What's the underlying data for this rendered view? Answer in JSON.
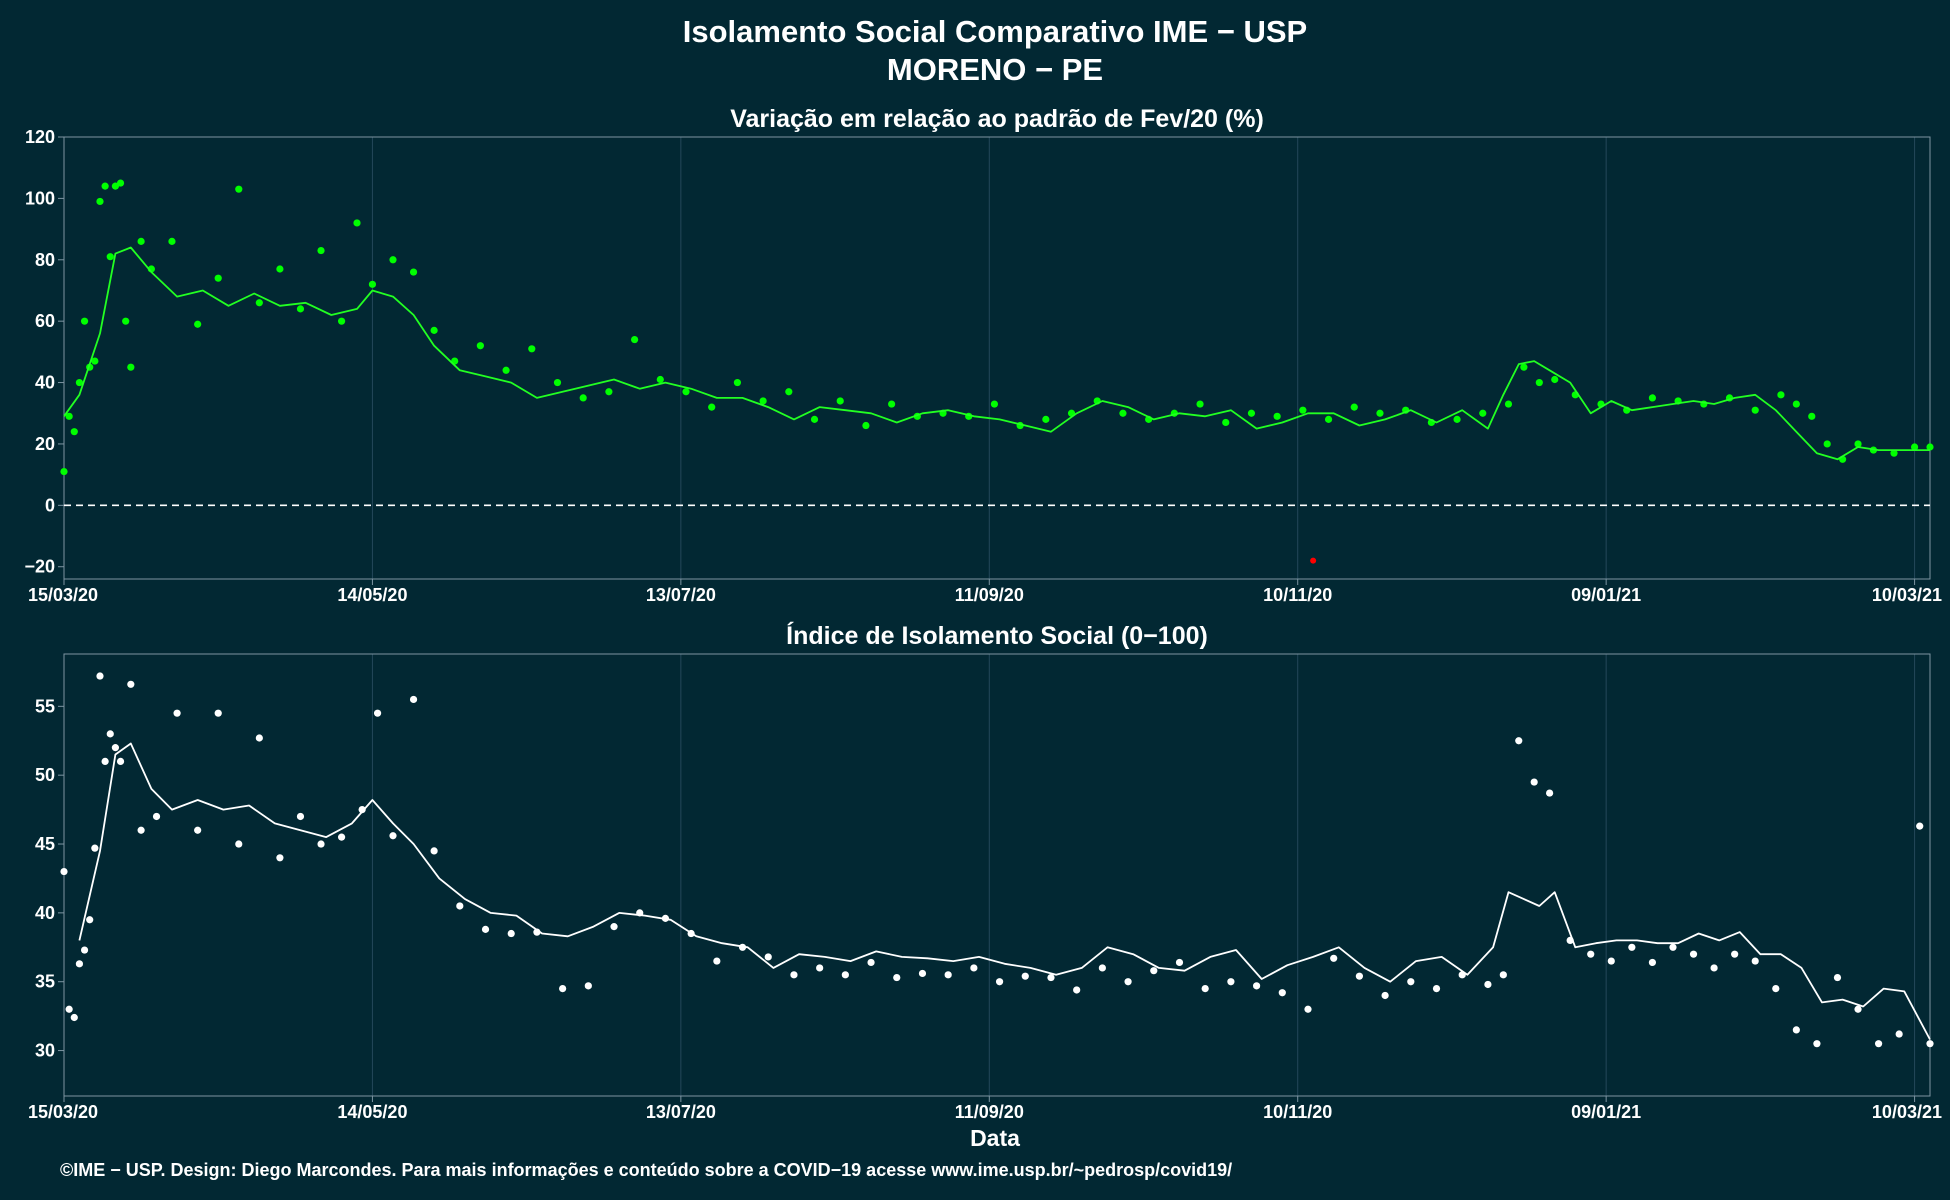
{
  "title_line1": "Isolamento Social Comparativo IME − USP",
  "title_line2": "MORENO − PE",
  "xlabel": "Data",
  "footer": "©IME − USP. Design: Diego Marcondes. Para mais informações e conteúdo sobre a COVID−19 acesse www.ime.usp.br/~pedrosp/covid19/",
  "colors": {
    "background": "#022833",
    "grid": "#24485a",
    "axis": "#7d95a2",
    "variation_points": "#00ff00",
    "variation_line": "#22ff22",
    "negative_point": "#ff0000",
    "index_points": "#ffffff",
    "index_line": "#ffffff"
  },
  "x_ticks": [
    "15/03/20",
    "14/05/20",
    "13/07/20",
    "11/09/20",
    "10/11/20",
    "09/01/21",
    "10/03/21"
  ],
  "chart_data": [
    {
      "type": "scatter",
      "title": "Variação em relação ao padrão de Fev/20 (%)",
      "x_range": [
        "15/03/20",
        "13/03/21"
      ],
      "ylim": [
        -24,
        120
      ],
      "y_ticks": [
        -20,
        0,
        20,
        40,
        60,
        80,
        100,
        120
      ],
      "reference_line": {
        "y": 0,
        "style": "dashed"
      },
      "grid": true,
      "series": [
        {
          "kind": "points",
          "dates": [
            "15/03/20",
            "16/03/20",
            "17/03/20",
            "18/03/20",
            "19/03/20",
            "20/03/20",
            "21/03/20",
            "22/03/20",
            "23/03/20",
            "24/03/20",
            "25/03/20",
            "26/03/20",
            "27/03/20",
            "28/03/20",
            "30/03/20",
            "01/04/20",
            "05/04/20",
            "10/04/20",
            "14/04/20",
            "18/04/20",
            "22/04/20",
            "26/04/20",
            "30/04/20",
            "04/05/20",
            "08/05/20",
            "11/05/20",
            "14/05/20",
            "18/05/20",
            "22/05/20",
            "26/05/20",
            "30/05/20",
            "04/06/20",
            "09/06/20",
            "14/06/20",
            "19/06/20",
            "24/06/20",
            "29/06/20",
            "04/07/20",
            "09/07/20",
            "14/07/20",
            "19/07/20",
            "24/07/20",
            "29/07/20",
            "03/08/20",
            "08/08/20",
            "13/08/20",
            "18/08/20",
            "23/08/20",
            "28/08/20",
            "02/09/20",
            "07/09/20",
            "12/09/20",
            "17/09/20",
            "22/09/20",
            "27/09/20",
            "02/10/20",
            "07/10/20",
            "12/10/20",
            "17/10/20",
            "22/10/20",
            "27/10/20",
            "01/11/20",
            "06/11/20",
            "11/11/20",
            "16/11/20",
            "21/11/20",
            "26/11/20",
            "01/12/20",
            "06/12/20",
            "11/12/20",
            "16/12/20",
            "21/12/20",
            "24/12/20",
            "27/12/20",
            "30/12/20",
            "03/01/21",
            "08/01/21",
            "13/01/21",
            "18/01/21",
            "23/01/21",
            "28/01/21",
            "02/02/21",
            "07/02/21",
            "12/02/21",
            "15/02/21",
            "18/02/21",
            "21/02/21",
            "24/02/21",
            "27/02/21",
            "02/03/21",
            "06/03/21",
            "10/03/21",
            "13/03/21"
          ],
          "values": [
            11,
            29,
            24,
            40,
            60,
            45,
            47,
            99,
            104,
            81,
            104,
            105,
            60,
            45,
            86,
            77,
            86,
            59,
            74,
            103,
            66,
            77,
            64,
            83,
            60,
            92,
            72,
            80,
            76,
            57,
            47,
            52,
            44,
            51,
            40,
            35,
            37,
            54,
            41,
            37,
            32,
            40,
            34,
            37,
            28,
            34,
            26,
            33,
            29,
            30,
            29,
            33,
            26,
            28,
            30,
            34,
            30,
            28,
            30,
            33,
            27,
            30,
            29,
            31,
            28,
            32,
            30,
            31,
            27,
            28,
            30,
            33,
            45,
            40,
            41,
            36,
            33,
            31,
            35,
            34,
            33,
            35,
            31,
            36,
            33,
            29,
            20,
            15,
            20,
            18,
            17,
            19,
            19
          ]
        },
        {
          "kind": "moving_average",
          "dates": [
            "15/03/20",
            "18/03/20",
            "22/03/20",
            "25/03/20",
            "28/03/20",
            "01/04/20",
            "06/04/20",
            "11/04/20",
            "16/04/20",
            "21/04/20",
            "26/04/20",
            "01/05/20",
            "06/05/20",
            "11/05/20",
            "14/05/20",
            "18/05/20",
            "22/05/20",
            "26/05/20",
            "31/05/20",
            "05/06/20",
            "10/06/20",
            "15/06/20",
            "20/06/20",
            "25/06/20",
            "30/06/20",
            "05/07/20",
            "10/07/20",
            "15/07/20",
            "20/07/20",
            "25/07/20",
            "30/07/20",
            "04/08/20",
            "09/08/20",
            "14/08/20",
            "19/08/20",
            "24/08/20",
            "29/08/20",
            "03/09/20",
            "08/09/20",
            "13/09/20",
            "18/09/20",
            "23/09/20",
            "28/09/20",
            "03/10/20",
            "08/10/20",
            "13/10/20",
            "18/10/20",
            "23/10/20",
            "28/10/20",
            "02/11/20",
            "07/11/20",
            "12/11/20",
            "17/11/20",
            "22/11/20",
            "27/11/20",
            "02/12/20",
            "07/12/20",
            "12/12/20",
            "17/12/20",
            "20/12/20",
            "23/12/20",
            "26/12/20",
            "29/12/20",
            "02/01/21",
            "06/01/21",
            "10/01/21",
            "14/01/21",
            "18/01/21",
            "22/01/21",
            "26/01/21",
            "30/01/21",
            "03/02/21",
            "07/02/21",
            "11/02/21",
            "15/02/21",
            "19/02/21",
            "23/02/21",
            "27/02/21",
            "03/03/21",
            "07/03/21",
            "13/03/21"
          ],
          "values": [
            29,
            36,
            56,
            82,
            84,
            76,
            68,
            70,
            65,
            69,
            65,
            66,
            62,
            64,
            70,
            68,
            62,
            52,
            44,
            42,
            40,
            35,
            37,
            39,
            41,
            38,
            40,
            38,
            35,
            35,
            32,
            28,
            32,
            31,
            30,
            27,
            30,
            31,
            29,
            28,
            26,
            24,
            30,
            34,
            32,
            28,
            30,
            29,
            31,
            25,
            27,
            30,
            30,
            26,
            28,
            31,
            27,
            31,
            25,
            36,
            46,
            47,
            44,
            40,
            30,
            34,
            31,
            32,
            33,
            34,
            33,
            35,
            36,
            31,
            24,
            17,
            15,
            19,
            18,
            18,
            18
          ]
        }
      ],
      "negative_points": [
        {
          "date": "13/11/20",
          "value": -18
        }
      ]
    },
    {
      "type": "scatter",
      "title": "Índice de Isolamento Social (0−100)",
      "x_range": [
        "15/03/20",
        "13/03/21"
      ],
      "ylim": [
        26.7,
        58.8
      ],
      "y_ticks": [
        30,
        35,
        40,
        45,
        50,
        55
      ],
      "grid": true,
      "series": [
        {
          "kind": "points",
          "dates": [
            "15/03/20",
            "16/03/20",
            "17/03/20",
            "18/03/20",
            "19/03/20",
            "20/03/20",
            "21/03/20",
            "22/03/20",
            "23/03/20",
            "24/03/20",
            "25/03/20",
            "26/03/20",
            "28/03/20",
            "30/03/20",
            "02/04/20",
            "06/04/20",
            "10/04/20",
            "14/04/20",
            "18/04/20",
            "22/04/20",
            "26/04/20",
            "30/04/20",
            "04/05/20",
            "08/05/20",
            "12/05/20",
            "15/05/20",
            "18/05/20",
            "22/05/20",
            "26/05/20",
            "31/05/20",
            "05/06/20",
            "10/06/20",
            "15/06/20",
            "20/06/20",
            "25/06/20",
            "30/06/20",
            "05/07/20",
            "10/07/20",
            "15/07/20",
            "20/07/20",
            "25/07/20",
            "30/07/20",
            "04/08/20",
            "09/08/20",
            "14/08/20",
            "19/08/20",
            "24/08/20",
            "29/08/20",
            "03/09/20",
            "08/09/20",
            "13/09/20",
            "18/09/20",
            "23/09/20",
            "28/09/20",
            "03/10/20",
            "08/10/20",
            "13/10/20",
            "18/10/20",
            "23/10/20",
            "28/10/20",
            "02/11/20",
            "07/11/20",
            "12/11/20",
            "17/11/20",
            "22/11/20",
            "27/11/20",
            "02/12/20",
            "07/12/20",
            "12/12/20",
            "17/12/20",
            "20/12/20",
            "23/12/20",
            "26/12/20",
            "29/12/20",
            "02/01/21",
            "06/01/21",
            "10/01/21",
            "14/01/21",
            "18/01/21",
            "22/01/21",
            "26/01/21",
            "30/01/21",
            "03/02/21",
            "07/02/21",
            "11/02/21",
            "15/02/21",
            "19/02/21",
            "23/02/21",
            "27/02/21",
            "03/03/21",
            "07/03/21",
            "11/03/21",
            "13/03/21"
          ],
          "values": [
            43,
            33,
            32.4,
            36.3,
            37.3,
            39.5,
            44.7,
            57.2,
            51,
            53,
            52,
            51,
            56.6,
            46,
            47,
            54.5,
            46,
            54.5,
            45,
            52.7,
            44,
            47,
            45,
            45.5,
            47.5,
            54.5,
            45.6,
            55.5,
            44.5,
            40.5,
            38.8,
            38.5,
            38.6,
            34.5,
            34.7,
            39,
            40,
            39.6,
            38.5,
            36.5,
            37.5,
            36.8,
            35.5,
            36,
            35.5,
            36.4,
            35.3,
            35.6,
            35.5,
            36,
            35,
            35.4,
            35.3,
            34.4,
            36,
            35,
            35.8,
            36.4,
            34.5,
            35,
            34.7,
            34.2,
            33,
            36.7,
            35.4,
            34,
            35,
            34.5,
            35.5,
            34.8,
            35.5,
            52.5,
            49.5,
            48.7,
            38,
            37,
            36.5,
            37.5,
            36.4,
            37.5,
            37,
            36,
            37,
            36.5,
            34.5,
            31.5,
            30.5,
            35.3,
            33,
            30.5,
            31.2,
            46.3,
            30.5
          ]
        },
        {
          "kind": "moving_average",
          "dates": [
            "18/03/20",
            "22/03/20",
            "25/03/20",
            "28/03/20",
            "01/04/20",
            "05/04/20",
            "10/04/20",
            "15/04/20",
            "20/04/20",
            "25/04/20",
            "30/04/20",
            "05/05/20",
            "10/05/20",
            "14/05/20",
            "18/05/20",
            "22/05/20",
            "27/05/20",
            "01/06/20",
            "06/06/20",
            "11/06/20",
            "16/06/20",
            "21/06/20",
            "26/06/20",
            "01/07/20",
            "06/07/20",
            "11/07/20",
            "16/07/20",
            "21/07/20",
            "26/07/20",
            "31/07/20",
            "05/08/20",
            "10/08/20",
            "15/08/20",
            "20/08/20",
            "25/08/20",
            "30/08/20",
            "04/09/20",
            "09/09/20",
            "14/09/20",
            "19/09/20",
            "24/09/20",
            "29/09/20",
            "04/10/20",
            "09/10/20",
            "14/10/20",
            "19/10/20",
            "24/10/20",
            "29/10/20",
            "03/11/20",
            "08/11/20",
            "13/11/20",
            "18/11/20",
            "23/11/20",
            "28/11/20",
            "03/12/20",
            "08/12/20",
            "13/12/20",
            "18/12/20",
            "21/12/20",
            "24/12/20",
            "27/12/20",
            "30/12/20",
            "03/01/21",
            "07/01/21",
            "11/01/21",
            "15/01/21",
            "19/01/21",
            "23/01/21",
            "27/01/21",
            "31/01/21",
            "04/02/21",
            "08/02/21",
            "12/02/21",
            "16/02/21",
            "20/02/21",
            "24/02/21",
            "28/02/21",
            "04/03/21",
            "08/03/21",
            "13/03/21"
          ],
          "values": [
            38,
            44.5,
            51.5,
            52.3,
            49,
            47.5,
            48.2,
            47.5,
            47.8,
            46.5,
            46,
            45.5,
            46.5,
            48.2,
            46.5,
            45,
            42.5,
            41,
            40,
            39.8,
            38.5,
            38.3,
            39,
            40,
            39.8,
            39.5,
            38.3,
            37.8,
            37.5,
            36,
            37,
            36.8,
            36.5,
            37.2,
            36.8,
            36.7,
            36.5,
            36.8,
            36.3,
            36,
            35.5,
            36,
            37.5,
            37,
            36,
            35.8,
            36.8,
            37.3,
            35.2,
            36.2,
            36.8,
            37.5,
            36,
            35,
            36.5,
            36.8,
            35.5,
            37.5,
            41.5,
            41,
            40.5,
            41.5,
            37.5,
            37.8,
            38,
            38,
            37.8,
            37.8,
            38.5,
            38,
            38.6,
            37,
            37,
            36,
            33.5,
            33.7,
            33.2,
            34.5,
            34.3,
            30.8
          ]
        }
      ]
    }
  ]
}
